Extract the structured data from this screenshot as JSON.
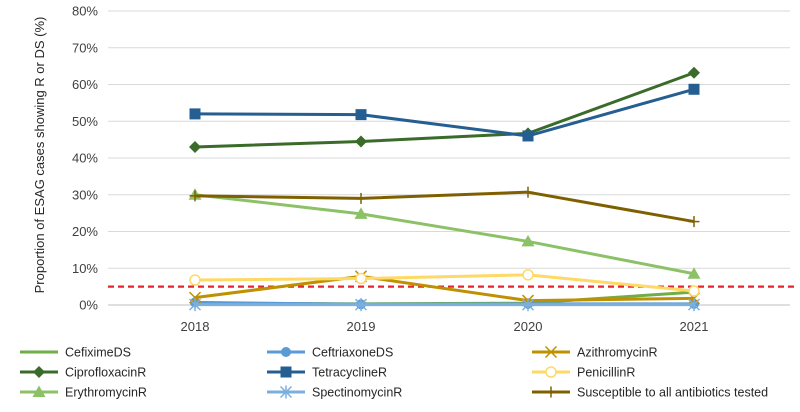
{
  "chart_data": {
    "type": "line",
    "title": "",
    "xlabel": "",
    "ylabel": "Proportion of ESAG cases showing R or DS (%)",
    "ylim": [
      0,
      80
    ],
    "y_ticks": [
      "0%",
      "10%",
      "20%",
      "30%",
      "40%",
      "50%",
      "60%",
      "70%",
      "80%"
    ],
    "y_tick_values": [
      0,
      10,
      20,
      30,
      40,
      50,
      60,
      70,
      80
    ],
    "categories": [
      "2018",
      "2019",
      "2020",
      "2021"
    ],
    "grid": true,
    "threshold": {
      "value": 5,
      "color": "#e3262d",
      "style": "dashed"
    },
    "legend_position": "bottom",
    "series": [
      {
        "name": "CefiximeDS",
        "values": [
          0.5,
          0.3,
          0.5,
          3.5
        ],
        "color": "#70ad47",
        "marker": "none"
      },
      {
        "name": "CeftriaxoneDS",
        "values": [
          0.7,
          0.2,
          0.3,
          0.3
        ],
        "color": "#5b9bd5",
        "marker": "circle"
      },
      {
        "name": "AzithromycinR",
        "values": [
          2.0,
          7.8,
          1.2,
          1.8
        ],
        "color": "#bf9000",
        "marker": "x"
      },
      {
        "name": "CiprofloxacinR",
        "values": [
          43.0,
          44.5,
          46.7,
          63.2
        ],
        "color": "#3a6b2a",
        "marker": "diamond"
      },
      {
        "name": "TetracyclineR",
        "values": [
          52.0,
          51.8,
          46.0,
          58.7
        ],
        "color": "#255e91",
        "marker": "square"
      },
      {
        "name": "PenicillinR",
        "values": [
          6.8,
          7.2,
          8.2,
          3.8
        ],
        "color": "#ffd966",
        "marker": "circle-open"
      },
      {
        "name": "ErythromycinR",
        "values": [
          30.0,
          24.8,
          17.3,
          8.5
        ],
        "color": "#8cc168",
        "marker": "triangle"
      },
      {
        "name": "SpectinomycinR",
        "values": [
          0.1,
          0.1,
          0.1,
          0.1
        ],
        "color": "#7cafdd",
        "marker": "star"
      },
      {
        "name": "Susceptible to all antibiotics tested",
        "values": [
          29.7,
          29.0,
          30.7,
          22.7
        ],
        "color": "#7f6000",
        "marker": "plus"
      }
    ]
  }
}
